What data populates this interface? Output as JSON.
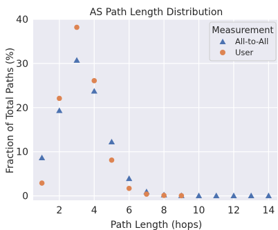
{
  "chart_data": {
    "type": "scatter",
    "title": "AS Path Length Distribution",
    "xlabel": "Path Length (hops)",
    "ylabel": "Fraction of Total Paths (%)",
    "xlim": [
      0.5,
      14.5
    ],
    "ylim": [
      -1,
      40
    ],
    "xticks": [
      2,
      4,
      6,
      8,
      10,
      12,
      14
    ],
    "yticks": [
      0,
      10,
      20,
      30,
      40
    ],
    "grid": true,
    "legend": {
      "title": "Measurement",
      "placement": "top-right"
    },
    "series": [
      {
        "name": "All-to-All",
        "marker": "triangle",
        "color": "#4c72b0",
        "x": [
          1,
          2,
          3,
          4,
          5,
          6,
          7,
          8,
          9,
          10,
          11,
          12,
          13,
          14
        ],
        "y": [
          8.6,
          19.3,
          30.7,
          23.7,
          12.2,
          3.9,
          0.9,
          0.2,
          0.05,
          0.0,
          0.0,
          0.0,
          0.0,
          0.0
        ]
      },
      {
        "name": "User",
        "marker": "circle",
        "color": "#dd8452",
        "x": [
          1,
          2,
          3,
          4,
          5,
          6,
          7,
          8,
          9
        ],
        "y": [
          2.9,
          22.1,
          38.2,
          26.1,
          8.1,
          1.7,
          0.4,
          0.1,
          0.05
        ]
      }
    ]
  }
}
